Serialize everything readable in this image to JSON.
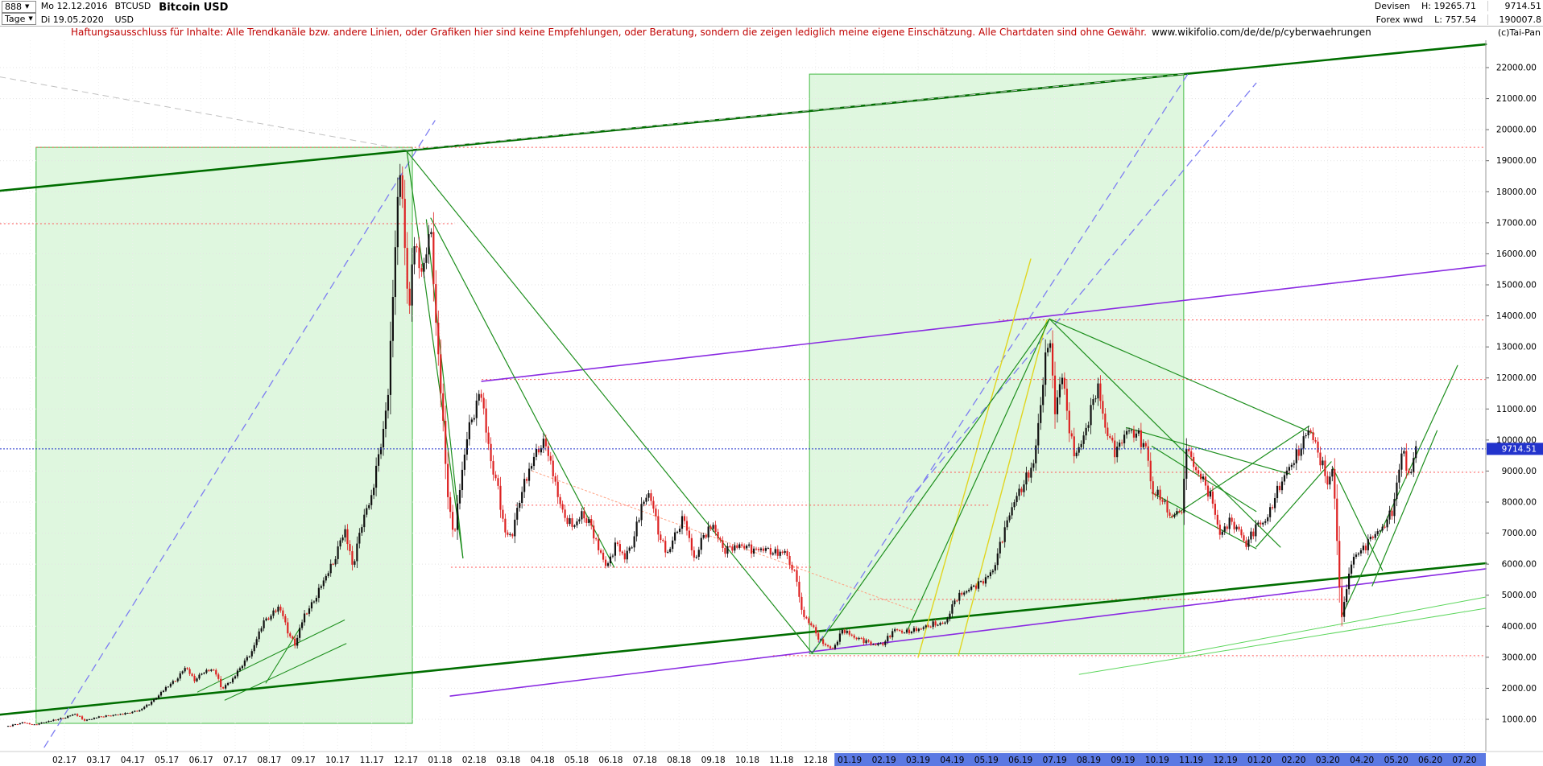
{
  "header": {
    "symbol_number": "888",
    "period": "Tage",
    "start_date": "Mo 12.12.2016",
    "end_date": "Di 19.05.2020",
    "symbol": "BTCUSD",
    "currency": "USD",
    "title": "Bitcoin USD",
    "market": "Devisen",
    "market2": "Forex wwd",
    "high": "H: 19265.71",
    "low": "L: 757.54",
    "corner_top": "9714.51",
    "corner_bottom": "190007.8"
  },
  "disclaimer": {
    "text": "Haftungsausschluss für Inhalte: Alle Trendkanäle bzw. andere Linien, oder Grafiken hier sind keine Empfehlungen, oder Beratung, sondern die zeigen lediglich meine eigene Einschätzung. Alle Chartdaten sind ohne Gewähr.",
    "link": "www.wikifolio.com/de/de/p/cyberwaehrungen"
  },
  "copyright": "(c)Tai-Pan",
  "chart_data": {
    "type": "candlestick",
    "instrument": "BTCUSD Bitcoin USD",
    "period": "daily",
    "current_price": 9714.51,
    "current_price_label": "9714.51",
    "y_axis": {
      "min": 1000,
      "max": 22000,
      "step": 1000
    },
    "x_labels": [
      "02.17",
      "03.17",
      "04.17",
      "05.17",
      "06.17",
      "07.17",
      "08.17",
      "09.17",
      "10.17",
      "11.17",
      "12.17",
      "01.18",
      "02.18",
      "03.18",
      "04.18",
      "05.18",
      "06.18",
      "07.18",
      "08.18",
      "09.18",
      "10.18",
      "11.18",
      "12.18",
      "01.19",
      "02.19",
      "03.19",
      "04.19",
      "05.19",
      "06.19",
      "07.19",
      "08.19",
      "09.19",
      "10.19",
      "11.19",
      "12.19",
      "01.20",
      "02.20",
      "03.20",
      "04.20",
      "05.20",
      "06.20",
      "07.20"
    ],
    "x_highlight_from_label": "01.19",
    "candle_step_months": 0.07,
    "colors": {
      "up": "#111111",
      "down": "#dd2222",
      "box_fill": "rgba(140,225,140,0.28)",
      "box_border": "#44bb44",
      "thick_green": "#006e00",
      "green": "#1e8f1e",
      "light_green": "#5cd65c",
      "purple": "#8a2be2",
      "blue_dash": "#7d7df2",
      "yellow": "#e0d520",
      "orange": "#ff9f80",
      "red_level": "#ff5555",
      "gray_dash": "#c0c0c0",
      "grid": "#e3e3e3",
      "vgrid": "#efefef",
      "current": "#2233cc",
      "x_highlight_bg": "#5b79e3"
    },
    "boxes": [
      {
        "t1": 1.17,
        "t2": 12.19,
        "p1": 870,
        "p2": 19430
      },
      {
        "t1": 23.82,
        "t2": 34.78,
        "p1": 3110,
        "p2": 21790
      }
    ],
    "levels": [
      {
        "p": 19430,
        "t1": 1.17,
        "t2": 43.63
      },
      {
        "p": 16970,
        "t1": 0.11,
        "t2": 13.44
      },
      {
        "p": 13870,
        "t1": 29.36,
        "t2": 43.63
      },
      {
        "p": 11950,
        "t1": 14.22,
        "t2": 43.63
      },
      {
        "p": 8959,
        "t1": 27.47,
        "t2": 43.63
      },
      {
        "p": 7900,
        "t1": 15.21,
        "t2": 29.12
      },
      {
        "p": 5900,
        "t1": 13.32,
        "t2": 23.93
      },
      {
        "p": 4863,
        "t1": 25.58,
        "t2": 39.74
      },
      {
        "p": 3050,
        "t1": 22.75,
        "t2": 43.63
      }
    ],
    "lines": [
      {
        "c": "thick_green",
        "w": 2.6,
        "d": "",
        "pts": [
          [
            0.11,
            18030
          ],
          [
            43.63,
            22750
          ]
        ]
      },
      {
        "c": "thick_green",
        "w": 2.6,
        "d": "",
        "pts": [
          [
            0.11,
            1150
          ],
          [
            43.63,
            6030
          ]
        ]
      },
      {
        "c": "purple",
        "w": 1.6,
        "d": "",
        "pts": [
          [
            14.22,
            11890
          ],
          [
            43.63,
            15620
          ]
        ]
      },
      {
        "c": "purple",
        "w": 1.6,
        "d": "",
        "pts": [
          [
            13.3,
            1750
          ],
          [
            43.63,
            5850
          ]
        ]
      },
      {
        "c": "blue_dash",
        "w": 1.3,
        "d": "9,7",
        "pts": [
          [
            1.41,
            100
          ],
          [
            12.85,
            20290
          ]
        ]
      },
      {
        "c": "blue_dash",
        "w": 1.3,
        "d": "9,7",
        "pts": [
          [
            23.89,
            3130
          ],
          [
            34.9,
            21790
          ]
        ]
      },
      {
        "c": "blue_dash",
        "w": 1.3,
        "d": "9,7",
        "pts": [
          [
            26.67,
            8000
          ],
          [
            36.9,
            21500
          ]
        ]
      },
      {
        "c": "yellow",
        "w": 1.4,
        "d": "",
        "pts": [
          [
            27.0,
            3000
          ],
          [
            30.3,
            15830
          ]
        ]
      },
      {
        "c": "yellow",
        "w": 1.4,
        "d": "",
        "pts": [
          [
            28.18,
            3050
          ],
          [
            30.77,
            13860
          ]
        ]
      },
      {
        "c": "orange",
        "w": 1,
        "d": "2,3",
        "pts": [
          [
            15.7,
            9000
          ],
          [
            26.9,
            4500
          ]
        ]
      },
      {
        "c": "gray_dash",
        "w": 1,
        "d": "7,6",
        "pts": [
          [
            0.11,
            21700
          ],
          [
            12.03,
            19350
          ]
        ]
      },
      {
        "c": "gray_dash",
        "w": 1,
        "d": "7,6",
        "pts": [
          [
            12.03,
            19350
          ],
          [
            34.78,
            21790
          ]
        ]
      },
      {
        "c": "green",
        "w": 1.1,
        "d": "",
        "pts": [
          [
            5.9,
            1880
          ],
          [
            10.2,
            4200
          ]
        ]
      },
      {
        "c": "green",
        "w": 1.1,
        "d": "",
        "pts": [
          [
            6.7,
            1620
          ],
          [
            10.25,
            3440
          ]
        ]
      },
      {
        "c": "green",
        "w": 1.1,
        "d": "",
        "pts": [
          [
            7.9,
            2170
          ],
          [
            8.9,
            3950
          ]
        ]
      },
      {
        "c": "green",
        "w": 1.2,
        "d": "",
        "pts": [
          [
            12.03,
            19300
          ],
          [
            23.9,
            3130
          ]
        ]
      },
      {
        "c": "green",
        "w": 1.2,
        "d": "",
        "pts": [
          [
            12.03,
            19300
          ],
          [
            13.67,
            6200
          ]
        ]
      },
      {
        "c": "green",
        "w": 1.2,
        "d": "",
        "pts": [
          [
            12.6,
            17100
          ],
          [
            13.67,
            6200
          ]
        ]
      },
      {
        "c": "green",
        "w": 1.2,
        "d": "",
        "pts": [
          [
            12.73,
            17150
          ],
          [
            18.1,
            5900
          ]
        ]
      },
      {
        "c": "green",
        "w": 1.2,
        "d": "",
        "pts": [
          [
            23.9,
            3130
          ],
          [
            30.85,
            13900
          ]
        ]
      },
      {
        "c": "green",
        "w": 1.2,
        "d": "",
        "pts": [
          [
            26.7,
            3900
          ],
          [
            30.85,
            13900
          ]
        ]
      },
      {
        "c": "green",
        "w": 1.2,
        "d": "",
        "pts": [
          [
            30.85,
            13900
          ],
          [
            37.61,
            6550
          ]
        ]
      },
      {
        "c": "green",
        "w": 1.2,
        "d": "",
        "pts": [
          [
            30.85,
            13900
          ],
          [
            38.6,
            10200
          ]
        ]
      },
      {
        "c": "green",
        "w": 1.2,
        "d": "",
        "pts": [
          [
            36.9,
            6550
          ],
          [
            39.1,
            9300
          ]
        ]
      },
      {
        "c": "green",
        "w": 1.2,
        "d": "",
        "pts": [
          [
            33.1,
            10400
          ],
          [
            37.9,
            8900
          ]
        ]
      },
      {
        "c": "green",
        "w": 1.2,
        "d": "",
        "pts": [
          [
            34.4,
            7500
          ],
          [
            38.45,
            10450
          ]
        ]
      },
      {
        "c": "green",
        "w": 1.2,
        "d": "",
        "pts": [
          [
            39.4,
            4300
          ],
          [
            42.8,
            12400
          ]
        ]
      },
      {
        "c": "green",
        "w": 1.2,
        "d": "",
        "pts": [
          [
            40.3,
            5300
          ],
          [
            42.2,
            10300
          ]
        ]
      },
      {
        "c": "green",
        "w": 1.2,
        "d": "",
        "pts": [
          [
            39.15,
            9100
          ],
          [
            40.6,
            5800
          ]
        ]
      },
      {
        "c": "green",
        "w": 1.2,
        "d": "",
        "pts": [
          [
            33.85,
            8300
          ],
          [
            36.9,
            6500
          ]
        ]
      },
      {
        "c": "green",
        "w": 1.2,
        "d": "",
        "pts": [
          [
            33.85,
            9800
          ],
          [
            36.9,
            7700
          ]
        ]
      },
      {
        "c": "light_green",
        "w": 1,
        "d": "",
        "pts": [
          [
            31.72,
            2450
          ],
          [
            43.63,
            4577
          ]
        ]
      },
      {
        "c": "light_green",
        "w": 1,
        "d": "",
        "pts": [
          [
            34.78,
            3126
          ],
          [
            43.63,
            4940
          ]
        ]
      }
    ],
    "price_anchors": [
      [
        0.35,
        780
      ],
      [
        0.8,
        900
      ],
      [
        1.1,
        820
      ],
      [
        1.5,
        930
      ],
      [
        2.0,
        1050
      ],
      [
        2.3,
        1180
      ],
      [
        2.6,
        960
      ],
      [
        3.0,
        1080
      ],
      [
        3.4,
        1130
      ],
      [
        3.8,
        1190
      ],
      [
        4.2,
        1290
      ],
      [
        4.6,
        1600
      ],
      [
        5.0,
        2050
      ],
      [
        5.3,
        2300
      ],
      [
        5.55,
        2700
      ],
      [
        5.8,
        2250
      ],
      [
        6.1,
        2550
      ],
      [
        6.4,
        2600
      ],
      [
        6.6,
        1980
      ],
      [
        6.9,
        2250
      ],
      [
        7.2,
        2750
      ],
      [
        7.5,
        3200
      ],
      [
        7.8,
        4100
      ],
      [
        8.05,
        4350
      ],
      [
        8.3,
        4650
      ],
      [
        8.55,
        3800
      ],
      [
        8.75,
        3400
      ],
      [
        9.0,
        4300
      ],
      [
        9.3,
        4800
      ],
      [
        9.6,
        5500
      ],
      [
        9.9,
        6100
      ],
      [
        10.2,
        7150
      ],
      [
        10.45,
        5900
      ],
      [
        10.7,
        7300
      ],
      [
        11.0,
        8200
      ],
      [
        11.2,
        9500
      ],
      [
        11.45,
        11000
      ],
      [
        11.6,
        14200
      ],
      [
        11.75,
        17500
      ],
      [
        11.85,
        19200
      ],
      [
        11.95,
        16200
      ],
      [
        12.1,
        14300
      ],
      [
        12.25,
        16400
      ],
      [
        12.5,
        15200
      ],
      [
        12.7,
        17100
      ],
      [
        12.9,
        13500
      ],
      [
        13.1,
        10300
      ],
      [
        13.25,
        7900
      ],
      [
        13.4,
        6900
      ],
      [
        13.6,
        8600
      ],
      [
        13.8,
        10200
      ],
      [
        14.0,
        10900
      ],
      [
        14.2,
        11600
      ],
      [
        14.45,
        9500
      ],
      [
        14.7,
        8400
      ],
      [
        14.9,
        7000
      ],
      [
        15.1,
        6900
      ],
      [
        15.35,
        8200
      ],
      [
        15.6,
        9000
      ],
      [
        15.85,
        9700
      ],
      [
        16.1,
        9900
      ],
      [
        16.35,
        8700
      ],
      [
        16.6,
        7600
      ],
      [
        16.9,
        7200
      ],
      [
        17.15,
        7600
      ],
      [
        17.4,
        7300
      ],
      [
        17.65,
        6450
      ],
      [
        17.9,
        5900
      ],
      [
        18.15,
        6700
      ],
      [
        18.4,
        6200
      ],
      [
        18.65,
        6700
      ],
      [
        18.9,
        7900
      ],
      [
        19.15,
        8300
      ],
      [
        19.4,
        7000
      ],
      [
        19.65,
        6300
      ],
      [
        19.9,
        7000
      ],
      [
        20.15,
        7500
      ],
      [
        20.45,
        6100
      ],
      [
        20.7,
        6900
      ],
      [
        21.0,
        7250
      ],
      [
        21.3,
        6450
      ],
      [
        21.6,
        6550
      ],
      [
        21.9,
        6600
      ],
      [
        22.2,
        6450
      ],
      [
        22.5,
        6500
      ],
      [
        22.8,
        6350
      ],
      [
        23.1,
        6400
      ],
      [
        23.45,
        5500
      ],
      [
        23.6,
        4400
      ],
      [
        23.9,
        4000
      ],
      [
        24.15,
        3500
      ],
      [
        24.5,
        3250
      ],
      [
        24.8,
        3900
      ],
      [
        25.1,
        3650
      ],
      [
        25.4,
        3550
      ],
      [
        25.7,
        3400
      ],
      [
        26.0,
        3450
      ],
      [
        26.3,
        3900
      ],
      [
        26.6,
        3800
      ],
      [
        27.0,
        3900
      ],
      [
        27.4,
        4050
      ],
      [
        27.8,
        4100
      ],
      [
        28.1,
        4900
      ],
      [
        28.5,
        5200
      ],
      [
        28.9,
        5450
      ],
      [
        29.2,
        5800
      ],
      [
        29.5,
        7000
      ],
      [
        29.8,
        8000
      ],
      [
        30.1,
        8600
      ],
      [
        30.4,
        9300
      ],
      [
        30.65,
        11800
      ],
      [
        30.85,
        13600
      ],
      [
        31.0,
        10800
      ],
      [
        31.2,
        12200
      ],
      [
        31.55,
        9500
      ],
      [
        31.8,
        9900
      ],
      [
        32.05,
        10900
      ],
      [
        32.25,
        11800
      ],
      [
        32.5,
        10300
      ],
      [
        32.8,
        9600
      ],
      [
        33.1,
        10300
      ],
      [
        33.4,
        10200
      ],
      [
        33.7,
        9700
      ],
      [
        33.85,
        8300
      ],
      [
        34.1,
        8200
      ],
      [
        34.4,
        7500
      ],
      [
        34.75,
        7800
      ],
      [
        34.87,
        10000
      ],
      [
        35.05,
        9150
      ],
      [
        35.3,
        8800
      ],
      [
        35.6,
        8100
      ],
      [
        35.85,
        6900
      ],
      [
        36.1,
        7400
      ],
      [
        36.4,
        7100
      ],
      [
        36.6,
        6600
      ],
      [
        36.9,
        7250
      ],
      [
        37.2,
        7400
      ],
      [
        37.5,
        8300
      ],
      [
        37.8,
        9000
      ],
      [
        38.1,
        9500
      ],
      [
        38.45,
        10400
      ],
      [
        38.7,
        9650
      ],
      [
        39.0,
        8600
      ],
      [
        39.15,
        9100
      ],
      [
        39.4,
        4150
      ],
      [
        39.55,
        5300
      ],
      [
        39.75,
        6250
      ],
      [
        40.0,
        6450
      ],
      [
        40.3,
        6900
      ],
      [
        40.6,
        7150
      ],
      [
        40.9,
        7750
      ],
      [
        41.07,
        8900
      ],
      [
        41.2,
        9900
      ],
      [
        41.35,
        8650
      ],
      [
        41.5,
        9450
      ],
      [
        41.62,
        9714.51
      ]
    ]
  }
}
